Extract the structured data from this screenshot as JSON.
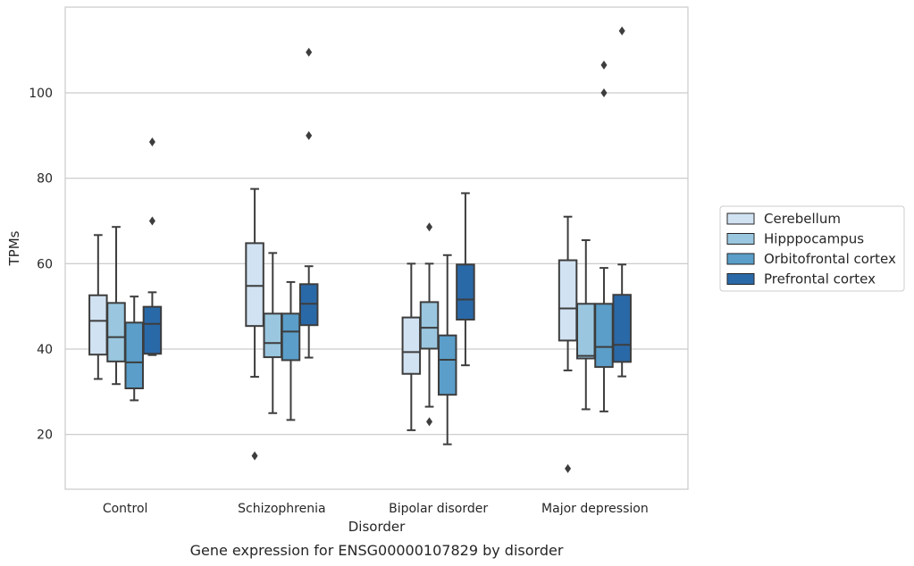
{
  "chart_data": {
    "type": "box",
    "title": "Gene expression for ENSG00000107829 by disorder",
    "xlabel": "Disorder",
    "ylabel": "TPMs",
    "ylim": [
      7,
      120
    ],
    "yticks": [
      20,
      40,
      60,
      80,
      100
    ],
    "grid": "horizontal",
    "legend_position": "right",
    "categories": [
      "Control",
      "Schizophrenia",
      "Bipolar disorder",
      "Major depression"
    ],
    "series": [
      {
        "name": "Cerebellum",
        "color": "#d1e2f2",
        "boxes": [
          {
            "whislo": 33,
            "q1": 38.7,
            "med": 46.6,
            "q3": 52.6,
            "whishi": 66.7,
            "fliers": []
          },
          {
            "whislo": 33.5,
            "q1": 45.4,
            "med": 54.8,
            "q3": 64.8,
            "whishi": 77.5,
            "fliers": [
              15
            ]
          },
          {
            "whislo": 21,
            "q1": 34.2,
            "med": 39.3,
            "q3": 47.4,
            "whishi": 60,
            "fliers": []
          },
          {
            "whislo": 35,
            "q1": 42,
            "med": 49.5,
            "q3": 60.8,
            "whishi": 71,
            "fliers": [
              12
            ]
          }
        ]
      },
      {
        "name": "Hipppocampus",
        "color": "#9ac7df",
        "boxes": [
          {
            "whislo": 31.8,
            "q1": 37.1,
            "med": 42.8,
            "q3": 50.8,
            "whishi": 68.6,
            "fliers": []
          },
          {
            "whislo": 25,
            "q1": 38.1,
            "med": 41.4,
            "q3": 48.3,
            "whishi": 62.5,
            "fliers": []
          },
          {
            "whislo": 26.5,
            "q1": 40.1,
            "med": 45,
            "q3": 51,
            "whishi": 60,
            "fliers": [
              23,
              68.6
            ]
          },
          {
            "whislo": 25.9,
            "q1": 37.8,
            "med": 38.4,
            "q3": 50.6,
            "whishi": 65.5,
            "fliers": []
          }
        ]
      },
      {
        "name": "Orbitofrontal cortex",
        "color": "#5a9ec9",
        "boxes": [
          {
            "whislo": 28,
            "q1": 30.8,
            "med": 36.9,
            "q3": 46.2,
            "whishi": 52.3,
            "fliers": []
          },
          {
            "whislo": 23.4,
            "q1": 37.4,
            "med": 44.1,
            "q3": 48.3,
            "whishi": 55.7,
            "fliers": []
          },
          {
            "whislo": 17.7,
            "q1": 29.3,
            "med": 37.5,
            "q3": 43.2,
            "whishi": 62,
            "fliers": []
          },
          {
            "whislo": 25.4,
            "q1": 35.8,
            "med": 40.5,
            "q3": 50.6,
            "whishi": 59,
            "fliers": [
              100,
              106.5
            ]
          }
        ]
      },
      {
        "name": "Prefrontal cortex",
        "color": "#2a69a8",
        "boxes": [
          {
            "whislo": 38.6,
            "q1": 38.9,
            "med": 45.9,
            "q3": 49.9,
            "whishi": 53.3,
            "fliers": [
              70,
              88.5
            ]
          },
          {
            "whislo": 38,
            "q1": 45.6,
            "med": 50.6,
            "q3": 55.2,
            "whishi": 59.4,
            "fliers": [
              90,
              109.5
            ]
          },
          {
            "whislo": 36.2,
            "q1": 46.9,
            "med": 51.6,
            "q3": 59.8,
            "whishi": 76.5,
            "fliers": []
          },
          {
            "whislo": 33.6,
            "q1": 37,
            "med": 41,
            "q3": 52.7,
            "whishi": 59.8,
            "fliers": [
              114.5
            ]
          }
        ]
      }
    ]
  }
}
